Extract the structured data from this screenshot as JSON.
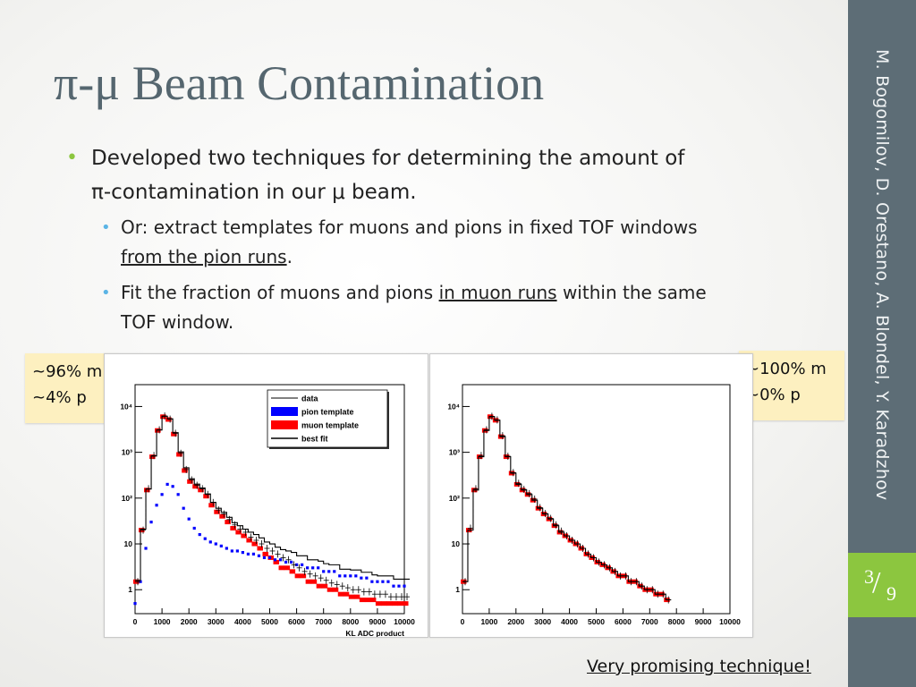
{
  "title": "π-μ Beam Contamination",
  "bullets": {
    "main_line1": "Developed two techniques for determining the amount of",
    "main_line2": "π-contamination in our μ beam.",
    "sub1_text": "Or: extract templates for muons and pions in fixed TOF windows",
    "sub1_underlined": "from the pion runs",
    "sub1_tail": ".",
    "sub2_text": "Fit the fraction of muons and pions",
    "sub2_underlined": "in muon runs",
    "sub2_tail": "within the same",
    "sub2_line2": "TOF window."
  },
  "notes": {
    "left_line1": "~96% m",
    "left_line2": "~4% p",
    "right_line1": "~100% m",
    "right_line2": "~0% p"
  },
  "sidebar": {
    "authors": "M. Bogomilov, D. Orestano, A. Blondel, Y. Karadzhov",
    "page_current": "3",
    "page_total": "9"
  },
  "footer": {
    "link_text": "Very promising technique!"
  },
  "colors": {
    "title": "#55666f",
    "sidebar": "#5d6d76",
    "page_box": "#8cc63f",
    "bullet_main": "#8cc63f",
    "bullet_sub": "#5bb4e5",
    "note_bg": "#fdf0c0",
    "pion": "#0000ff",
    "muon": "#ff0000",
    "data": "#000000"
  },
  "chart_data": [
    {
      "type": "histogram",
      "xlabel": "KL ADC product",
      "ylabel": "",
      "xlim": [
        0,
        10000
      ],
      "ylim": [
        0.3,
        30000
      ],
      "log_y": true,
      "x_ticks": [
        "0",
        "1000",
        "2000",
        "3000",
        "4000",
        "5000",
        "6000",
        "7000",
        "8000",
        "9000",
        "10000"
      ],
      "y_ticks": [
        {
          "value": 1,
          "label": "1"
        },
        {
          "value": 10,
          "label": "10"
        },
        {
          "value": 100,
          "label": "10²"
        },
        {
          "value": 1000,
          "label": "10³"
        },
        {
          "value": 10000,
          "label": "10⁴"
        }
      ],
      "legend": {
        "placement": "top-right",
        "entries": [
          {
            "name": "data",
            "style": "line",
            "color": "#000000"
          },
          {
            "name": "pion template",
            "style": "fill",
            "color": "#0000ff"
          },
          {
            "name": "muon template",
            "style": "fill",
            "color": "#ff0000"
          },
          {
            "name": "best fit",
            "style": "line",
            "color": "#000000"
          }
        ]
      },
      "series": [
        {
          "name": "muon template",
          "x": [
            0,
            200,
            400,
            600,
            800,
            1000,
            1200,
            1400,
            1600,
            1800,
            2000,
            2200,
            2400,
            2600,
            2800,
            3000,
            3200,
            3400,
            3600,
            3800,
            4000,
            4200,
            4400,
            4600,
            4800,
            5000,
            5200,
            5400,
            5600,
            5800,
            6000,
            6200,
            6400,
            6600,
            6800,
            7000,
            7200,
            7400,
            7600,
            7800,
            8000,
            8200,
            8400,
            8600,
            8800,
            9000,
            9200,
            9400,
            9600,
            9800,
            10000
          ],
          "y": [
            1.5,
            20,
            150,
            800,
            3000,
            6000,
            5200,
            2500,
            900,
            400,
            230,
            180,
            150,
            110,
            70,
            50,
            40,
            30,
            22,
            18,
            15,
            12,
            10,
            8,
            6,
            5,
            4,
            3,
            3,
            2.5,
            2,
            2,
            1.5,
            1.5,
            1.2,
            1.2,
            1,
            1,
            0.8,
            0.8,
            0.7,
            0.7,
            0.6,
            0.6,
            0.6,
            0.5,
            0.5,
            0.5,
            0.5,
            0.5,
            0.5
          ]
        },
        {
          "name": "pion template",
          "x": [
            0,
            200,
            400,
            600,
            800,
            1000,
            1200,
            1400,
            1600,
            1800,
            2000,
            2200,
            2400,
            2600,
            2800,
            3000,
            3200,
            3400,
            3600,
            3800,
            4000,
            4200,
            4400,
            4600,
            4800,
            5000,
            5200,
            5400,
            5600,
            5800,
            6000,
            6200,
            6400,
            6600,
            6800,
            7000,
            7200,
            7400,
            7600,
            7800,
            8000,
            8200,
            8400,
            8600,
            8800,
            9000,
            9200,
            9400,
            9600,
            9800,
            10000
          ],
          "y": [
            0.5,
            1.5,
            8,
            30,
            70,
            120,
            200,
            180,
            120,
            60,
            35,
            22,
            16,
            13,
            11,
            10,
            9,
            8,
            7,
            7,
            6.5,
            6,
            6,
            5.5,
            5,
            5,
            4.5,
            4.5,
            4,
            4,
            3.5,
            3.5,
            3,
            3,
            3,
            2.5,
            2.5,
            2.5,
            2,
            2,
            2,
            2,
            1.8,
            1.8,
            1.5,
            1.5,
            1.5,
            1.5,
            1.2,
            1.2,
            1.2
          ]
        },
        {
          "name": "data",
          "x": [
            0,
            200,
            400,
            600,
            800,
            1000,
            1200,
            1400,
            1600,
            1800,
            2000,
            2200,
            2400,
            2600,
            2800,
            3000,
            3200,
            3400,
            3600,
            3800,
            4000,
            4200,
            4400,
            4600,
            4800,
            5000,
            5200,
            5400,
            5600,
            5800,
            6000,
            6200,
            6400,
            6600,
            6800,
            7000,
            7200,
            7400,
            7600,
            7800,
            8000,
            8200,
            8400,
            8600,
            8800,
            9000,
            9200,
            9400,
            9600,
            9800,
            10000
          ],
          "y": [
            1.5,
            20,
            160,
            850,
            3100,
            6200,
            5300,
            2600,
            950,
            420,
            250,
            190,
            160,
            120,
            80,
            55,
            45,
            34,
            26,
            21,
            18,
            14,
            12,
            10,
            8,
            7,
            6,
            5,
            4.5,
            3.5,
            3,
            2.5,
            2.2,
            2,
            1.8,
            1.6,
            1.4,
            1.3,
            1.2,
            1.1,
            1,
            1,
            0.9,
            0.9,
            0.8,
            0.8,
            0.8,
            0.7,
            0.7,
            0.7,
            0.7
          ]
        },
        {
          "name": "best fit",
          "x": [
            0,
            200,
            400,
            600,
            800,
            1000,
            1200,
            1400,
            1600,
            1800,
            2000,
            2200,
            2400,
            2600,
            2800,
            3000,
            3200,
            3400,
            3600,
            3800,
            4000,
            4200,
            4400,
            4600,
            4800,
            5000,
            5200,
            5400,
            5600,
            5800,
            6000,
            6200,
            6400,
            6600,
            6800,
            7000,
            7200,
            7400,
            7600,
            7800,
            8000,
            8200,
            8400,
            8600,
            8800,
            9000,
            9200,
            9400,
            9600,
            9800,
            10000
          ],
          "y": [
            1.6,
            21,
            158,
            830,
            3070,
            6120,
            5400,
            2680,
            1020,
            460,
            265,
            202,
            166,
            123,
            81,
            60,
            49,
            38,
            29,
            25,
            21,
            18,
            16,
            13.5,
            11,
            10,
            8.5,
            7.5,
            7,
            6.5,
            5.5,
            5.5,
            4.5,
            4.5,
            4.2,
            3.7,
            3.5,
            3.5,
            2.8,
            2.8,
            2.7,
            2.7,
            2.4,
            2.4,
            2.1,
            2,
            2,
            2,
            1.7,
            1.7,
            1.7
          ]
        }
      ]
    },
    {
      "type": "histogram",
      "xlabel": "",
      "ylabel": "",
      "xlim": [
        0,
        10000
      ],
      "ylim": [
        0.3,
        30000
      ],
      "log_y": true,
      "x_ticks": [
        "0",
        "1000",
        "2000",
        "3000",
        "4000",
        "5000",
        "6000",
        "7000",
        "8000",
        "9000",
        "10000"
      ],
      "y_ticks": [
        {
          "value": 1,
          "label": "1"
        },
        {
          "value": 10,
          "label": "10"
        },
        {
          "value": 100,
          "label": "10²"
        },
        {
          "value": 1000,
          "label": "10³"
        },
        {
          "value": 10000,
          "label": "10⁴"
        }
      ],
      "series": [
        {
          "name": "muon template",
          "x": [
            0,
            200,
            400,
            600,
            800,
            1000,
            1200,
            1400,
            1600,
            1800,
            2000,
            2200,
            2400,
            2600,
            2800,
            3000,
            3200,
            3400,
            3600,
            3800,
            4000,
            4200,
            4400,
            4600,
            4800,
            5000,
            5200,
            5400,
            5600,
            5800,
            6000,
            6200,
            6400,
            6600,
            6800,
            7000,
            7200,
            7400,
            7600
          ],
          "y": [
            1.5,
            20,
            150,
            800,
            3000,
            6000,
            5000,
            2200,
            800,
            350,
            200,
            150,
            120,
            90,
            60,
            45,
            35,
            25,
            18,
            15,
            12,
            10,
            8,
            6,
            5,
            4,
            3.5,
            3,
            2.5,
            2,
            2,
            1.5,
            1.5,
            1.2,
            1,
            1,
            0.8,
            0.8,
            0.6
          ]
        },
        {
          "name": "data",
          "x": [
            0,
            200,
            400,
            600,
            800,
            1000,
            1200,
            1400,
            1600,
            1800,
            2000,
            2200,
            2400,
            2600,
            2800,
            3000,
            3200,
            3400,
            3600,
            3800,
            4000,
            4200,
            4400,
            4600,
            4800,
            5000,
            5200,
            5400,
            5600,
            5800,
            6000,
            6200,
            6400,
            6600,
            6800,
            7000,
            7200,
            7400,
            7600
          ],
          "y": [
            1.5,
            22,
            160,
            850,
            3100,
            6100,
            5100,
            2300,
            820,
            360,
            210,
            155,
            125,
            95,
            62,
            46,
            36,
            26,
            19,
            15,
            12,
            10,
            8,
            6,
            5,
            4,
            3.5,
            3,
            2.5,
            2,
            2,
            1.5,
            1.5,
            1.2,
            1,
            1,
            0.8,
            0.8,
            0.6
          ]
        },
        {
          "name": "best fit",
          "x": [
            0,
            200,
            400,
            600,
            800,
            1000,
            1200,
            1400,
            1600,
            1800,
            2000,
            2200,
            2400,
            2600,
            2800,
            3000,
            3200,
            3400,
            3600,
            3800,
            4000,
            4200,
            4400,
            4600,
            4800,
            5000,
            5200,
            5400,
            5600,
            5800,
            6000,
            6200,
            6400,
            6600,
            6800,
            7000,
            7200,
            7400,
            7600
          ],
          "y": [
            1.5,
            20,
            150,
            800,
            3000,
            6000,
            5000,
            2200,
            800,
            350,
            200,
            150,
            120,
            90,
            60,
            45,
            35,
            25,
            18,
            15,
            12,
            10,
            8,
            6,
            5,
            4,
            3.5,
            3,
            2.5,
            2,
            2,
            1.5,
            1.5,
            1.2,
            1,
            1,
            0.8,
            0.8,
            0.6
          ]
        }
      ]
    }
  ]
}
